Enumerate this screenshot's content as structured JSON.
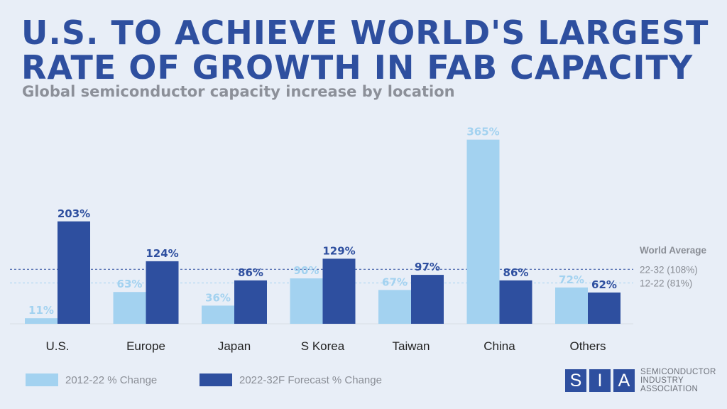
{
  "header": {
    "title_line1": "U.S. TO ACHIEVE WORLD'S LARGEST",
    "title_line2": "RATE OF GROWTH IN FAB CAPACITY",
    "subtitle": "Global semiconductor capacity increase by location"
  },
  "chart_data": {
    "type": "bar",
    "categories": [
      "U.S.",
      "Europe",
      "Japan",
      "S Korea",
      "Taiwan",
      "China",
      "Others"
    ],
    "series": [
      {
        "name": "2012-22 % Change",
        "values": [
          11,
          63,
          36,
          90,
          67,
          365,
          72
        ],
        "labels": [
          "11%",
          "63%",
          "36%",
          "90%",
          "67%",
          "365%",
          "72%"
        ],
        "color": "#a3d2f0",
        "label_color": "#a3d2f0"
      },
      {
        "name": "2022-32F Forecast % Change",
        "values": [
          203,
          124,
          86,
          129,
          97,
          86,
          62
        ],
        "labels": [
          "203%",
          "124%",
          "86%",
          "129%",
          "97%",
          "86%",
          "62%"
        ],
        "color": "#2e4f9f",
        "label_color": "#2e4f9f"
      }
    ],
    "ylim": [
      0,
      400
    ],
    "reference_lines": [
      {
        "label": "22-32 (108%)",
        "value": 108,
        "color": "#2e4f9f"
      },
      {
        "label": "12-22 (81%)",
        "value": 81,
        "color": "#a3d2f0"
      }
    ],
    "reference_title": "World Average",
    "grid": false,
    "legend_position": "bottom-left"
  },
  "logo": {
    "letters": [
      "S",
      "I",
      "A"
    ],
    "line1": "SEMICONDUCTOR",
    "line2": "INDUSTRY",
    "line3": "ASSOCIATION"
  }
}
